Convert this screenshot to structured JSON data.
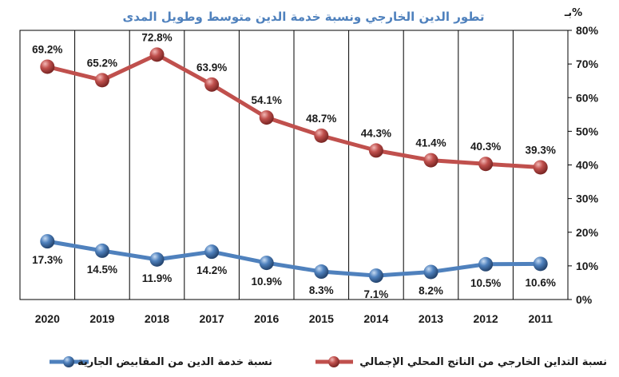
{
  "chart_data": {
    "type": "line",
    "title": "تطور الدين الخارجي ونسبة خدمة الدين متوسط وطويل المدى",
    "y_unit_label": "بـ%",
    "categories": [
      "2020",
      "2019",
      "2018",
      "2017",
      "2016",
      "2015",
      "2014",
      "2013",
      "2012",
      "2011"
    ],
    "ylim": [
      0,
      80
    ],
    "yticks": [
      "0%",
      "10%",
      "20%",
      "30%",
      "40%",
      "50%",
      "60%",
      "70%",
      "80%"
    ],
    "ytick_values": [
      0,
      10,
      20,
      30,
      40,
      50,
      60,
      70,
      80
    ],
    "grid": "vertical",
    "legend_position": "bottom",
    "series": [
      {
        "name": "نسبة التداين الخارجي من الناتج المحلي الإجمالي",
        "color": "#c0504d",
        "values": [
          69.2,
          65.2,
          72.8,
          63.9,
          54.1,
          48.7,
          44.3,
          41.4,
          40.3,
          39.3
        ],
        "labels": [
          "69.2%",
          "65.2%",
          "72.8%",
          "63.9%",
          "54.1%",
          "48.7%",
          "44.3%",
          "41.4%",
          "40.3%",
          "39.3%"
        ]
      },
      {
        "name": "نسبة خدمة الدين من المقابيض الجارية",
        "color": "#4f81bd",
        "values": [
          17.3,
          14.5,
          11.9,
          14.2,
          10.9,
          8.3,
          7.1,
          8.2,
          10.5,
          10.6
        ],
        "labels": [
          "17.3%",
          "14.5%",
          "11.9%",
          "14.2%",
          "10.9%",
          "8.3%",
          "7.1%",
          "8.2%",
          "10.5%",
          "10.6%"
        ]
      }
    ]
  }
}
